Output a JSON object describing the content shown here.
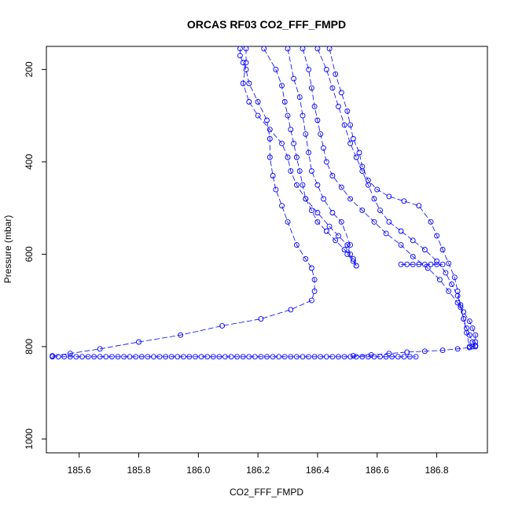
{
  "chart_data": {
    "type": "scatter",
    "title": "ORCAS RF03 CO2_FFF_FMPD",
    "xlabel": "CO2_FFF_FMPD",
    "ylabel": "Pressure (mbar)",
    "xlim": [
      185.49,
      186.97
    ],
    "ylim": [
      1030,
      150
    ],
    "y_reversed": true,
    "x_ticks": [
      185.6,
      185.8,
      186.0,
      186.2,
      186.4,
      186.6,
      186.8
    ],
    "x_tick_labels": [
      "185.6",
      "185.8",
      "186.0",
      "186.2",
      "186.4",
      "186.6",
      "186.8"
    ],
    "y_ticks": [
      200,
      400,
      600,
      800,
      1000
    ],
    "y_tick_labels": [
      "200",
      "400",
      "600",
      "800",
      "1000"
    ],
    "grid": false,
    "legend": "none",
    "marker": "open-circle",
    "line_style": "long-dash",
    "color": "#0000ff",
    "series": [
      {
        "x": [
          186.14,
          186.14,
          186.15,
          186.16,
          186.17,
          186.2,
          186.23,
          186.24,
          186.24,
          186.25,
          186.26,
          186.28,
          186.3,
          186.33,
          186.36,
          186.38,
          186.39,
          186.39,
          186.38,
          186.31,
          186.21,
          186.08,
          185.94,
          185.8,
          185.67,
          185.57,
          185.51
        ],
        "y": [
          155,
          170,
          185,
          200,
          230,
          270,
          310,
          350,
          390,
          430,
          460,
          495,
          530,
          580,
          610,
          630,
          655,
          680,
          700,
          720,
          740,
          755,
          775,
          790,
          805,
          815,
          820
        ]
      },
      {
        "x": [
          186.16,
          186.16,
          186.15,
          186.17,
          186.2,
          186.24,
          186.28,
          186.3,
          186.31,
          186.33,
          186.36,
          186.4,
          186.44,
          186.47,
          186.5,
          186.51
        ],
        "y": [
          155,
          185,
          230,
          270,
          300,
          330,
          360,
          390,
          420,
          450,
          480,
          510,
          540,
          560,
          580,
          600
        ]
      },
      {
        "x": [
          186.22,
          186.26,
          186.28,
          186.29,
          186.3,
          186.31,
          186.32,
          186.33,
          186.34,
          186.35,
          186.36,
          186.38,
          186.4,
          186.43,
          186.46,
          186.49,
          186.52,
          186.53
        ],
        "y": [
          155,
          200,
          235,
          270,
          300,
          330,
          360,
          390,
          420,
          450,
          480,
          505,
          530,
          550,
          570,
          590,
          610,
          625
        ]
      },
      {
        "x": [
          186.3,
          186.32,
          186.34,
          186.35,
          186.36,
          186.37,
          186.38,
          186.4,
          186.42,
          186.45,
          186.48,
          186.51,
          186.5,
          186.52,
          186.53
        ],
        "y": [
          155,
          220,
          260,
          300,
          340,
          380,
          420,
          450,
          480,
          510,
          530,
          580,
          600,
          615,
          625
        ]
      },
      {
        "x": [
          186.35,
          186.37,
          186.38,
          186.39,
          186.4,
          186.41,
          186.42,
          186.43,
          186.45,
          186.48,
          186.51,
          186.55,
          186.59,
          186.63,
          186.68,
          186.72,
          186.77,
          186.81,
          186.84,
          186.87,
          186.89,
          186.91,
          186.92,
          186.93,
          186.93,
          186.92
        ],
        "y": [
          155,
          200,
          240,
          280,
          310,
          340,
          370,
          400,
          430,
          455,
          480,
          505,
          530,
          555,
          580,
          605,
          630,
          655,
          680,
          705,
          725,
          745,
          760,
          775,
          790,
          800
        ]
      },
      {
        "x": [
          186.4,
          186.43,
          186.45,
          186.47,
          186.49,
          186.51,
          186.53,
          186.55,
          186.57,
          186.59,
          186.61,
          186.64,
          186.68,
          186.72,
          186.76,
          186.8,
          186.83,
          186.85,
          186.87,
          186.88,
          186.89,
          186.9,
          186.91,
          186.92,
          186.93
        ],
        "y": [
          155,
          200,
          240,
          280,
          320,
          360,
          390,
          420,
          450,
          480,
          505,
          530,
          550,
          570,
          590,
          615,
          640,
          665,
          690,
          715,
          740,
          760,
          775,
          790,
          800
        ]
      },
      {
        "x": [
          186.44,
          186.46,
          186.48,
          186.5,
          186.51,
          186.52,
          186.54,
          186.55,
          186.57,
          186.6,
          186.64,
          186.69,
          186.74,
          186.78,
          186.8,
          186.82,
          186.84,
          186.86,
          186.87,
          186.88,
          186.89,
          186.9,
          186.91
        ],
        "y": [
          155,
          210,
          250,
          290,
          320,
          350,
          380,
          410,
          440,
          460,
          475,
          485,
          495,
          530,
          560,
          590,
          620,
          650,
          680,
          710,
          740,
          770,
          800
        ]
      },
      {
        "x": [
          186.68,
          186.7,
          186.72,
          186.74,
          186.76,
          186.78,
          186.8,
          186.82
        ],
        "y": [
          622,
          622,
          622,
          622,
          622,
          622,
          622,
          622
        ]
      },
      {
        "x": [
          185.51,
          185.53,
          185.55,
          185.57,
          185.59,
          185.61,
          185.63,
          185.65,
          185.67,
          185.69,
          185.71,
          185.73,
          185.75,
          185.77,
          185.79,
          185.81,
          185.83,
          185.85,
          185.87,
          185.89,
          185.91,
          185.93,
          185.95,
          185.97,
          185.99,
          186.01,
          186.03,
          186.05,
          186.07,
          186.09,
          186.11,
          186.13,
          186.15,
          186.17,
          186.19,
          186.21,
          186.23,
          186.25,
          186.27,
          186.29,
          186.31,
          186.33,
          186.35,
          186.37,
          186.39,
          186.41,
          186.43,
          186.45,
          186.47,
          186.49,
          186.51,
          186.53,
          186.55,
          186.57,
          186.59,
          186.61,
          186.63,
          186.65,
          186.67,
          186.69,
          186.71,
          186.73
        ],
        "y": [
          822,
          822,
          822,
          822,
          822,
          822,
          822,
          822,
          822,
          822,
          822,
          822,
          822,
          822,
          822,
          822,
          822,
          822,
          822,
          822,
          822,
          822,
          822,
          822,
          822,
          822,
          822,
          822,
          822,
          822,
          822,
          822,
          822,
          822,
          822,
          822,
          822,
          822,
          822,
          822,
          822,
          822,
          822,
          822,
          822,
          822,
          822,
          822,
          822,
          822,
          822,
          822,
          822,
          822,
          822,
          822,
          822,
          822,
          822,
          822,
          822,
          822
        ]
      },
      {
        "x": [
          186.52,
          186.58,
          186.64,
          186.7,
          186.76,
          186.82,
          186.87,
          186.91,
          186.93
        ],
        "y": [
          820,
          818,
          815,
          812,
          810,
          808,
          805,
          802,
          798
        ]
      }
    ]
  }
}
